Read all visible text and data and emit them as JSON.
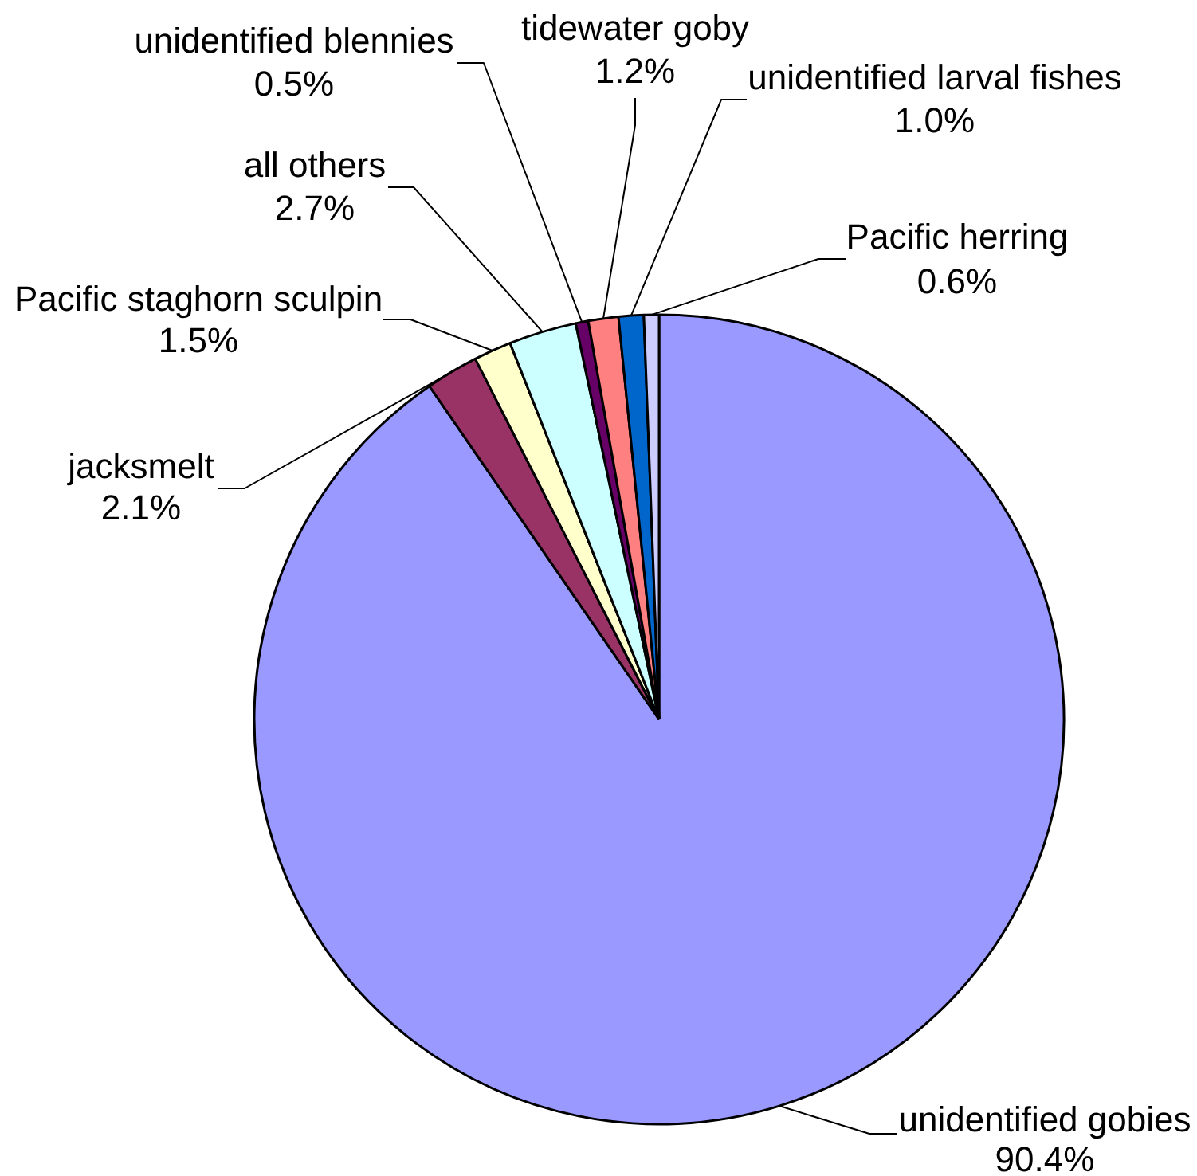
{
  "chart_data": {
    "type": "pie",
    "categories": [
      "unidentified gobies",
      "jacksmelt",
      "Pacific staghorn sculpin",
      "all others",
      "unidentified blennies",
      "tidewater goby",
      "unidentified larval fishes",
      "Pacific herring"
    ],
    "values": [
      90.4,
      2.1,
      1.5,
      2.7,
      0.5,
      1.2,
      1.0,
      0.6
    ],
    "colors": [
      "#9999ff",
      "#993366",
      "#ffffcc",
      "#ccffff",
      "#660066",
      "#ff8080",
      "#0066cc",
      "#ccccff"
    ],
    "value_labels": [
      "90.4%",
      "2.1%",
      "1.5%",
      "2.7%",
      "0.5%",
      "1.2%",
      "1.0%",
      "0.6%"
    ]
  }
}
